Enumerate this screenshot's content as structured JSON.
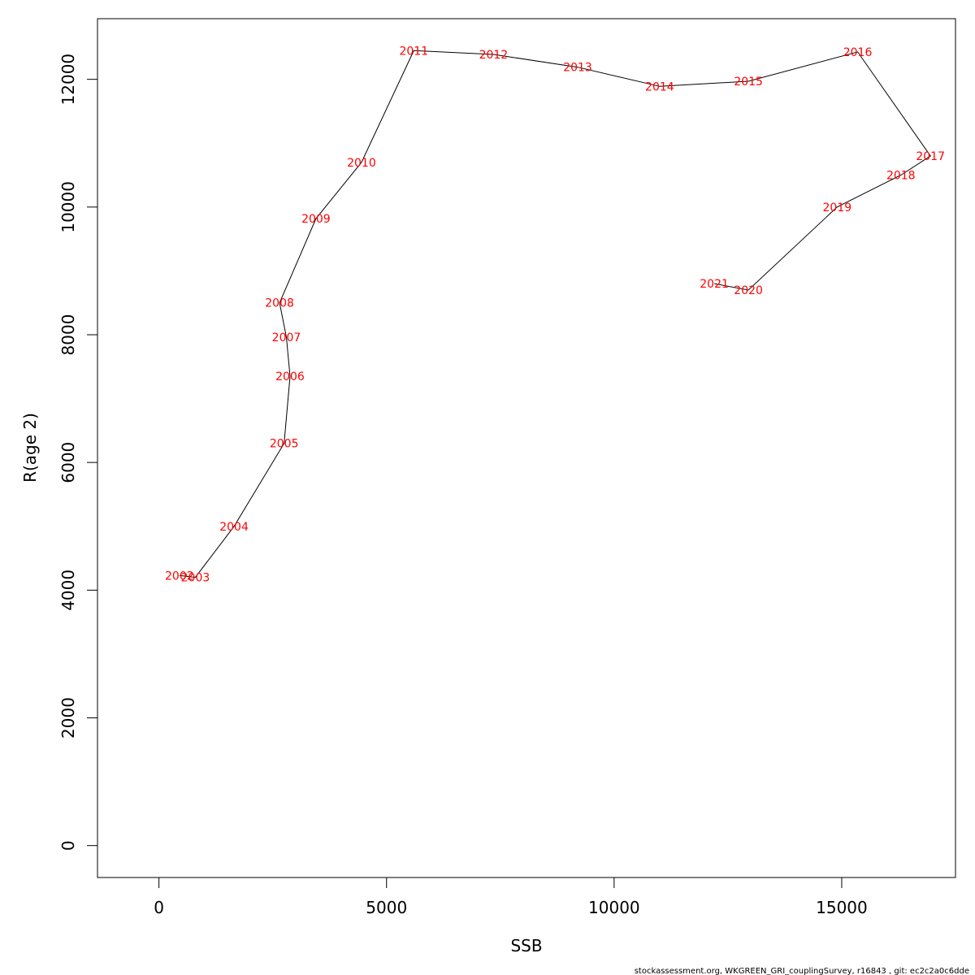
{
  "chart_data": {
    "type": "line",
    "title": "",
    "xlabel": "SSB",
    "ylabel": "R(age 2)",
    "xlim": [
      -1350,
      17500
    ],
    "ylim": [
      -500,
      12950
    ],
    "xticks": [
      0,
      5000,
      10000,
      15000
    ],
    "yticks": [
      0,
      2000,
      4000,
      6000,
      8000,
      10000,
      12000
    ],
    "grid": false,
    "line_color": "#000000",
    "label_color": "#ff0000",
    "points": [
      {
        "label": "2002",
        "x": 450,
        "y": 4230
      },
      {
        "label": "2003",
        "x": 800,
        "y": 4200
      },
      {
        "label": "2004",
        "x": 1650,
        "y": 5000
      },
      {
        "label": "2005",
        "x": 2750,
        "y": 6300
      },
      {
        "label": "2006",
        "x": 2880,
        "y": 7350
      },
      {
        "label": "2007",
        "x": 2800,
        "y": 7960
      },
      {
        "label": "2008",
        "x": 2650,
        "y": 8500
      },
      {
        "label": "2009",
        "x": 3450,
        "y": 9820
      },
      {
        "label": "2010",
        "x": 4450,
        "y": 10700
      },
      {
        "label": "2011",
        "x": 5600,
        "y": 12450
      },
      {
        "label": "2012",
        "x": 7350,
        "y": 12390
      },
      {
        "label": "2013",
        "x": 9200,
        "y": 12190
      },
      {
        "label": "2014",
        "x": 11000,
        "y": 11890
      },
      {
        "label": "2015",
        "x": 12950,
        "y": 11970
      },
      {
        "label": "2016",
        "x": 15350,
        "y": 12430
      },
      {
        "label": "2017",
        "x": 16950,
        "y": 10800
      },
      {
        "label": "2018",
        "x": 16300,
        "y": 10500
      },
      {
        "label": "2019",
        "x": 14900,
        "y": 10000
      },
      {
        "label": "2020",
        "x": 12950,
        "y": 8700
      },
      {
        "label": "2021",
        "x": 12200,
        "y": 8800
      }
    ]
  },
  "footer": "stockassessment.org, WKGREEN_GRI_couplingSurvey, r16843 , git: ec2c2a0c6dde"
}
